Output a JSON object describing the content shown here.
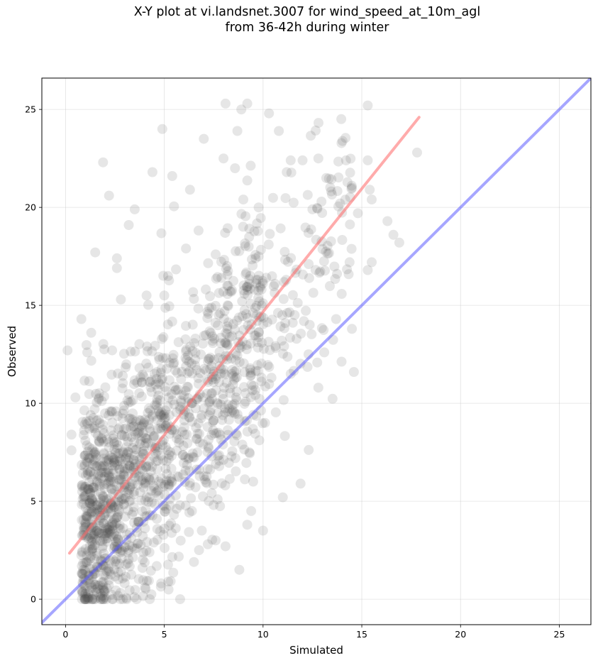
{
  "chart_data": {
    "type": "scatter",
    "title_line1": "X-Y plot at vi.landsnet.3007 for wind_speed_at_10m_agl",
    "title_line2": "from 36-42h during winter",
    "xlabel": "Simulated",
    "ylabel": "Observed",
    "xlim": [
      -1.2,
      26.6
    ],
    "ylim": [
      -1.3,
      26.6
    ],
    "xticks": [
      "0",
      "5",
      "10",
      "15",
      "20",
      "25"
    ],
    "yticks": [
      "0",
      "5",
      "10",
      "15",
      "20",
      "25"
    ],
    "grid": true,
    "point_color": "#4d4d4d",
    "point_alpha": 0.14,
    "generated_points": 1500,
    "highlight_points": [
      [
        0.8,
        14.3
      ],
      [
        1.5,
        17.7
      ],
      [
        1.9,
        22.3
      ],
      [
        2.2,
        20.6
      ],
      [
        2.6,
        17.4
      ],
      [
        3.2,
        19.1
      ],
      [
        3.5,
        19.9
      ],
      [
        4.4,
        21.8
      ],
      [
        4.9,
        24.0
      ],
      [
        5.4,
        21.6
      ],
      [
        6.3,
        20.9
      ],
      [
        7.0,
        23.5
      ],
      [
        8.0,
        22.5
      ],
      [
        8.1,
        25.3
      ],
      [
        8.7,
        23.9
      ],
      [
        8.9,
        25.0
      ],
      [
        9.2,
        25.3
      ],
      [
        10.3,
        24.8
      ],
      [
        10.8,
        23.9
      ],
      [
        11.2,
        21.8
      ],
      [
        11.4,
        22.4
      ],
      [
        12.0,
        22.4
      ],
      [
        12.8,
        22.5
      ],
      [
        13.2,
        21.5
      ],
      [
        14.2,
        22.4
      ],
      [
        15.3,
        25.2
      ],
      [
        15.3,
        22.4
      ],
      [
        15.4,
        20.9
      ],
      [
        15.5,
        20.4
      ],
      [
        16.3,
        19.3
      ],
      [
        16.6,
        18.6
      ],
      [
        17.8,
        22.8
      ],
      [
        15.5,
        17.2
      ],
      [
        15.3,
        16.8
      ],
      [
        14.6,
        11.6
      ],
      [
        14.5,
        13.8
      ],
      [
        13.1,
        12.6
      ],
      [
        12.8,
        10.8
      ],
      [
        12.3,
        12.5
      ],
      [
        11.9,
        5.9
      ],
      [
        11.0,
        5.2
      ],
      [
        10.1,
        9.0
      ],
      [
        10.0,
        3.5
      ],
      [
        9.4,
        4.5
      ],
      [
        9.5,
        6.0
      ],
      [
        9.2,
        3.8
      ],
      [
        8.8,
        1.5
      ],
      [
        8.6,
        7.2
      ],
      [
        8.4,
        7.3
      ],
      [
        8.1,
        2.7
      ],
      [
        7.7,
        5.1
      ],
      [
        7.6,
        3.0
      ],
      [
        7.5,
        4.8
      ],
      [
        7.2,
        2.8
      ],
      [
        6.9,
        3.5
      ],
      [
        6.5,
        1.9
      ],
      [
        6.4,
        4.5
      ],
      [
        5.8,
        0.0
      ],
      [
        5.2,
        0.9
      ],
      [
        0.1,
        12.7
      ],
      [
        0.3,
        7.6
      ],
      [
        0.3,
        8.4
      ],
      [
        0.5,
        10.3
      ],
      [
        1.1,
        12.6
      ],
      [
        1.3,
        13.6
      ],
      [
        2.8,
        15.3
      ],
      [
        2.6,
        16.9
      ],
      [
        4.1,
        15.5
      ],
      [
        5.0,
        15.5
      ],
      [
        6.1,
        17.9
      ],
      [
        7.6,
        17.6
      ],
      [
        12.5,
        19.9
      ],
      [
        13.9,
        20.2
      ],
      [
        14.8,
        19.7
      ],
      [
        16.9,
        18.2
      ],
      [
        13.7,
        14.3
      ],
      [
        11.6,
        14.5
      ],
      [
        11.4,
        11.5
      ],
      [
        1.8,
        0.0
      ],
      [
        2.4,
        0.0
      ],
      [
        3.1,
        0.0
      ],
      [
        3.6,
        0.0
      ],
      [
        2.9,
        0.0
      ]
    ],
    "series": [
      {
        "type": "fit-line",
        "color": "#ff6666",
        "alpha": 0.55,
        "x": [
          0.2,
          17.9
        ],
        "y": [
          2.35,
          24.6
        ]
      },
      {
        "type": "identity-line",
        "color": "#4d4dff",
        "alpha": 0.5,
        "x": [
          -1.2,
          26.6
        ],
        "y": [
          -1.2,
          26.6
        ]
      }
    ]
  }
}
